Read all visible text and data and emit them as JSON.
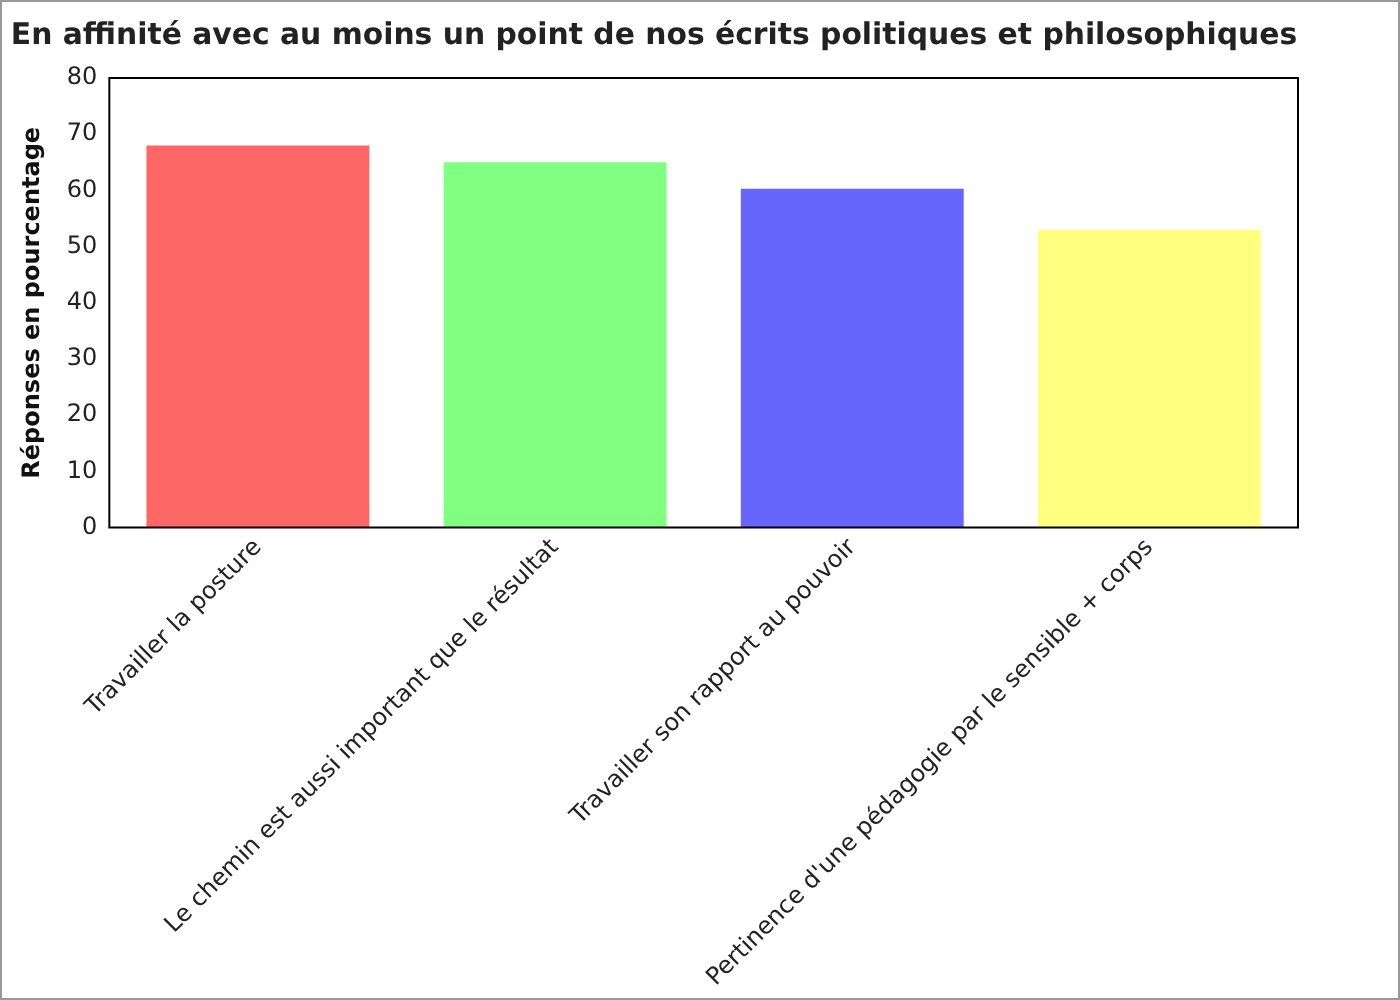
{
  "chart_data": {
    "type": "bar",
    "title": "En affinité avec au moins un point de nos écrits politiques et philosophiques",
    "ylabel": "Réponses en pourcentage",
    "categories": [
      "Travailler la posture",
      "Le chemin est aussi important que le résultat",
      "Travailler son rapport au pouvoir",
      "Pertinence d'une pédagogie par le sensible + corps"
    ],
    "values": [
      68,
      65,
      60.3,
      53
    ],
    "colors": [
      "#ff6666",
      "#80ff80",
      "#6666ff",
      "#ffff80"
    ],
    "ylim": [
      0,
      80
    ],
    "yticks": [
      0,
      10,
      20,
      30,
      40,
      50,
      60,
      70,
      80
    ],
    "grid": false,
    "legend": false
  }
}
